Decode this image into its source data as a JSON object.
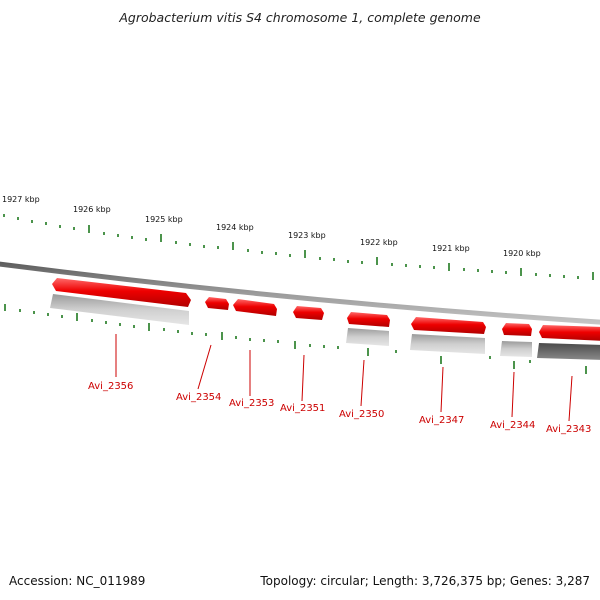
{
  "title": "Agrobacterium vitis S4 chromosome 1, complete genome",
  "footer": {
    "accession": "Accession: NC_011989",
    "summary": "Topology: circular; Length: 3,726,375 bp; Genes: 3,287"
  },
  "colors": {
    "forward_gene": "#ee0000",
    "reverse_gene_light": "#bdbdbd",
    "reverse_gene_dark": "#666666",
    "backbone": "#888888",
    "tick": "#1f7a1f",
    "label": "#cc0000"
  },
  "scale_labels": [
    "1927 kbp",
    "1926 kbp",
    "1925 kbp",
    "1924 kbp",
    "1923 kbp",
    "1922 kbp",
    "1921 kbp",
    "1920 kbp"
  ],
  "gene_labels": [
    "Avi_2356",
    "Avi_2354",
    "Avi_2353",
    "Avi_2351",
    "Avi_2350",
    "Avi_2347",
    "Avi_2344",
    "Avi_2343"
  ]
}
